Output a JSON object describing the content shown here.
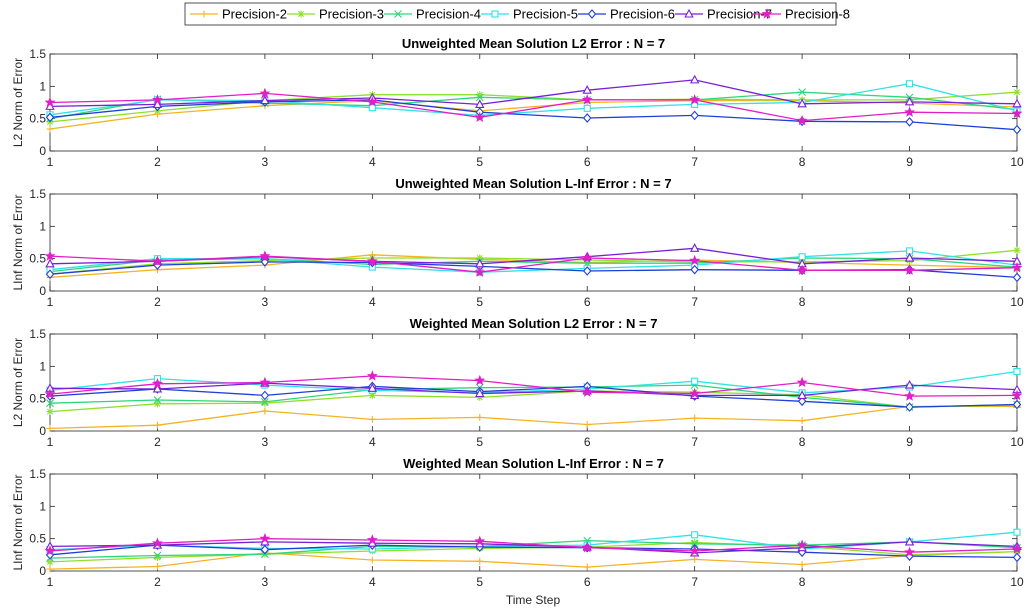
{
  "colors": {
    "Precision-2": "#f5b324",
    "Precision-3": "#8ee02a",
    "Precision-4": "#2fd67a",
    "Precision-5": "#2fe3e6",
    "Precision-6": "#1f3fd8",
    "Precision-7": "#7a1fd8",
    "Precision-8": "#e11ec7"
  },
  "markers": {
    "Precision-2": "plus",
    "Precision-3": "asterisk",
    "Precision-4": "cross",
    "Precision-5": "square",
    "Precision-6": "diamond",
    "Precision-7": "triangle",
    "Precision-8": "star"
  },
  "legend": [
    "Precision-2",
    "Precision-3",
    "Precision-4",
    "Precision-5",
    "Precision-6",
    "Precision-7",
    "Precision-8"
  ],
  "xlabel": "Time Step",
  "chart_data": [
    {
      "type": "line",
      "title": "Unweighted Mean Solution L2 Error  : N = 7",
      "ylabel": "L2 Norm of Error",
      "x": [
        1,
        2,
        3,
        4,
        5,
        6,
        7,
        8,
        9,
        10
      ],
      "xlim": [
        1,
        10
      ],
      "ylim": [
        0,
        1.5
      ],
      "yticks": [
        0,
        0.5,
        1,
        1.5
      ],
      "grid": false,
      "series": [
        {
          "name": "Precision-2",
          "values": [
            0.34,
            0.57,
            0.7,
            0.78,
            0.62,
            0.75,
            0.78,
            0.78,
            0.74,
            0.68
          ]
        },
        {
          "name": "Precision-3",
          "values": [
            0.45,
            0.62,
            0.78,
            0.87,
            0.87,
            0.79,
            0.8,
            0.79,
            0.79,
            0.91
          ]
        },
        {
          "name": "Precision-4",
          "values": [
            0.5,
            0.8,
            0.74,
            0.7,
            0.83,
            0.79,
            0.79,
            0.91,
            0.83,
            0.64
          ]
        },
        {
          "name": "Precision-5",
          "values": [
            0.56,
            0.79,
            0.78,
            0.67,
            0.55,
            0.66,
            0.72,
            0.75,
            1.04,
            0.62
          ]
        },
        {
          "name": "Precision-6",
          "values": [
            0.52,
            0.69,
            0.76,
            0.79,
            0.6,
            0.51,
            0.55,
            0.46,
            0.45,
            0.33
          ]
        },
        {
          "name": "Precision-7",
          "values": [
            0.69,
            0.72,
            0.78,
            0.82,
            0.72,
            0.94,
            1.1,
            0.73,
            0.76,
            0.73
          ]
        },
        {
          "name": "Precision-8",
          "values": [
            0.75,
            0.79,
            0.89,
            0.76,
            0.52,
            0.79,
            0.79,
            0.47,
            0.6,
            0.58
          ]
        }
      ]
    },
    {
      "type": "line",
      "title": "Unweighted Mean Solution L-Inf Error : N = 7",
      "ylabel": "LInf Norm of Error",
      "x": [
        1,
        2,
        3,
        4,
        5,
        6,
        7,
        8,
        9,
        10
      ],
      "xlim": [
        1,
        10
      ],
      "ylim": [
        0,
        1.5
      ],
      "yticks": [
        0,
        0.5,
        1,
        1.5
      ],
      "grid": false,
      "series": [
        {
          "name": "Precision-2",
          "values": [
            0.21,
            0.33,
            0.4,
            0.56,
            0.49,
            0.44,
            0.48,
            0.44,
            0.4,
            0.36
          ]
        },
        {
          "name": "Precision-3",
          "values": [
            0.26,
            0.42,
            0.47,
            0.51,
            0.51,
            0.48,
            0.45,
            0.45,
            0.47,
            0.63
          ]
        },
        {
          "name": "Precision-4",
          "values": [
            0.3,
            0.48,
            0.5,
            0.41,
            0.46,
            0.43,
            0.43,
            0.51,
            0.5,
            0.37
          ]
        },
        {
          "name": "Precision-5",
          "values": [
            0.33,
            0.5,
            0.5,
            0.37,
            0.29,
            0.35,
            0.4,
            0.53,
            0.62,
            0.4
          ]
        },
        {
          "name": "Precision-6",
          "values": [
            0.26,
            0.4,
            0.45,
            0.44,
            0.38,
            0.31,
            0.33,
            0.32,
            0.33,
            0.21
          ]
        },
        {
          "name": "Precision-7",
          "values": [
            0.42,
            0.46,
            0.53,
            0.46,
            0.42,
            0.53,
            0.66,
            0.42,
            0.51,
            0.46
          ]
        },
        {
          "name": "Precision-8",
          "values": [
            0.54,
            0.46,
            0.54,
            0.46,
            0.29,
            0.51,
            0.47,
            0.32,
            0.32,
            0.36
          ]
        }
      ]
    },
    {
      "type": "line",
      "title": "Weighted Mean Solution L2 Error : N = 7",
      "ylabel": "L2 Norm of Error",
      "x": [
        1,
        2,
        3,
        4,
        5,
        6,
        7,
        8,
        9,
        10
      ],
      "xlim": [
        1,
        10
      ],
      "ylim": [
        0,
        1.5
      ],
      "yticks": [
        0,
        0.5,
        1,
        1.5
      ],
      "grid": false,
      "series": [
        {
          "name": "Precision-2",
          "values": [
            0.04,
            0.09,
            0.31,
            0.18,
            0.21,
            0.1,
            0.2,
            0.16,
            0.38,
            0.38
          ]
        },
        {
          "name": "Precision-3",
          "values": [
            0.3,
            0.42,
            0.43,
            0.55,
            0.52,
            0.62,
            0.6,
            0.56,
            0.37,
            0.4
          ]
        },
        {
          "name": "Precision-4",
          "values": [
            0.43,
            0.48,
            0.45,
            0.64,
            0.67,
            0.68,
            0.71,
            0.52,
            0.37,
            0.41
          ]
        },
        {
          "name": "Precision-5",
          "values": [
            0.63,
            0.81,
            0.71,
            0.63,
            0.59,
            0.65,
            0.77,
            0.59,
            0.68,
            0.92
          ]
        },
        {
          "name": "Precision-6",
          "values": [
            0.54,
            0.65,
            0.55,
            0.69,
            0.61,
            0.69,
            0.54,
            0.46,
            0.37,
            0.41
          ]
        },
        {
          "name": "Precision-7",
          "values": [
            0.66,
            0.65,
            0.74,
            0.66,
            0.58,
            0.62,
            0.55,
            0.55,
            0.71,
            0.64
          ]
        },
        {
          "name": "Precision-8",
          "values": [
            0.57,
            0.73,
            0.75,
            0.85,
            0.78,
            0.6,
            0.58,
            0.75,
            0.54,
            0.55
          ]
        }
      ]
    },
    {
      "type": "line",
      "title": "Weighted Mean Solution L-Inf Error : N = 7",
      "ylabel": "LInf Norm of Error",
      "x": [
        1,
        2,
        3,
        4,
        5,
        6,
        7,
        8,
        9,
        10
      ],
      "xlim": [
        1,
        10
      ],
      "ylim": [
        0,
        1.5
      ],
      "yticks": [
        0,
        0.5,
        1,
        1.5
      ],
      "grid": false,
      "series": [
        {
          "name": "Precision-2",
          "values": [
            0.03,
            0.07,
            0.28,
            0.17,
            0.15,
            0.06,
            0.18,
            0.1,
            0.24,
            0.3
          ]
        },
        {
          "name": "Precision-3",
          "values": [
            0.14,
            0.21,
            0.26,
            0.31,
            0.35,
            0.37,
            0.44,
            0.38,
            0.25,
            0.3
          ]
        },
        {
          "name": "Precision-4",
          "values": [
            0.2,
            0.24,
            0.26,
            0.38,
            0.38,
            0.47,
            0.42,
            0.4,
            0.45,
            0.36
          ]
        },
        {
          "name": "Precision-5",
          "values": [
            0.33,
            0.4,
            0.35,
            0.34,
            0.38,
            0.4,
            0.56,
            0.34,
            0.45,
            0.6
          ]
        },
        {
          "name": "Precision-6",
          "values": [
            0.25,
            0.4,
            0.33,
            0.4,
            0.37,
            0.36,
            0.34,
            0.29,
            0.23,
            0.21
          ]
        },
        {
          "name": "Precision-7",
          "values": [
            0.38,
            0.4,
            0.45,
            0.43,
            0.42,
            0.37,
            0.28,
            0.36,
            0.45,
            0.38
          ]
        },
        {
          "name": "Precision-8",
          "values": [
            0.31,
            0.43,
            0.5,
            0.48,
            0.46,
            0.36,
            0.31,
            0.4,
            0.29,
            0.34
          ]
        }
      ]
    }
  ]
}
